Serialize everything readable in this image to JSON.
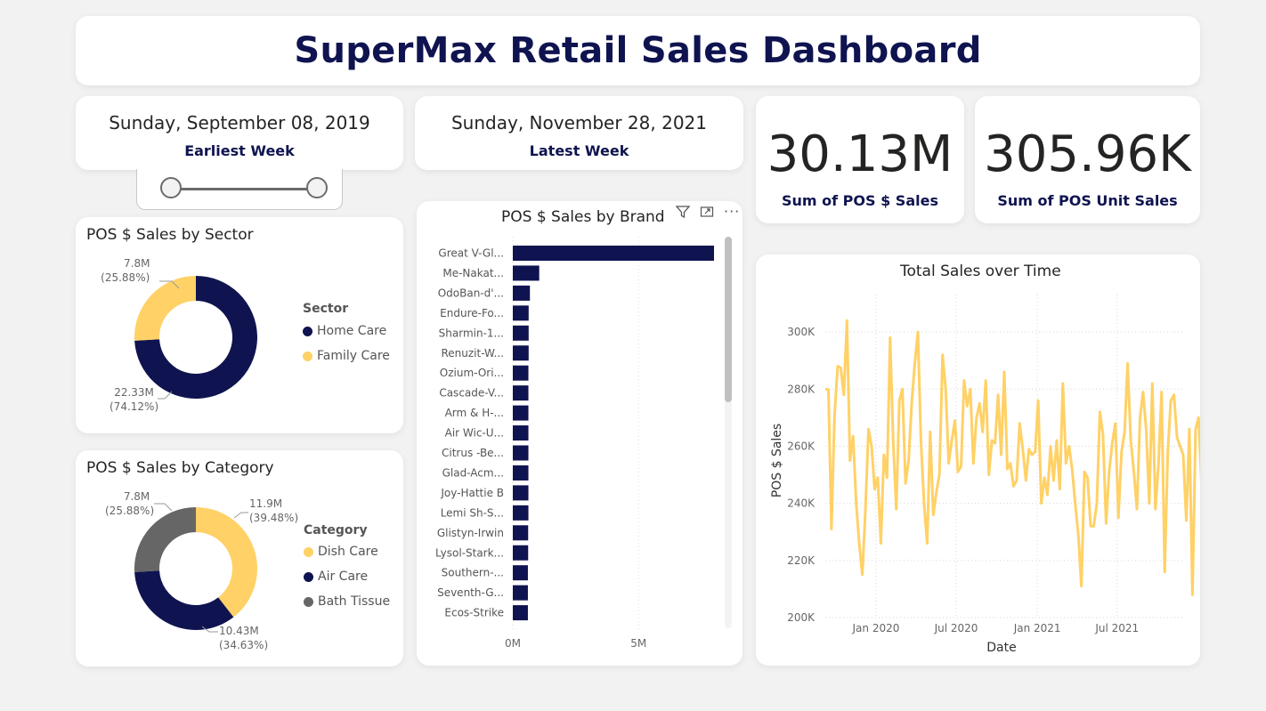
{
  "header": {
    "title": "SuperMax Retail Sales Dashboard"
  },
  "date_range": {
    "earliest": {
      "value": "Sunday, September 08, 2019",
      "label": "Earliest Week"
    },
    "latest": {
      "value": "Sunday, November 28, 2021",
      "label": "Latest Week"
    }
  },
  "kpis": {
    "sales": {
      "value": "30.13M",
      "label": "Sum of POS $ Sales"
    },
    "units": {
      "value": "305.96K",
      "label": "Sum of POS Unit Sales"
    }
  },
  "colors": {
    "navy": "#0f1450",
    "yellow": "#ffd166",
    "gray": "#666666"
  },
  "visual_icons": [
    "filter-icon",
    "focus-mode-icon",
    "more-options-icon"
  ],
  "chart_data": [
    {
      "type": "pie",
      "title": "POS $ Sales by Sector",
      "legend_title": "Sector",
      "slices": [
        {
          "name": "Home Care",
          "value": 22.33,
          "label": "22.33M",
          "pct": "(74.12%)",
          "color": "#0f1450"
        },
        {
          "name": "Family Care",
          "value": 7.8,
          "label": "7.8M",
          "pct": "(25.88%)",
          "color": "#ffd166"
        }
      ]
    },
    {
      "type": "pie",
      "title": "POS $ Sales by Category",
      "legend_title": "Category",
      "slices": [
        {
          "name": "Dish Care",
          "value": 11.9,
          "label": "11.9M",
          "pct": "(39.48%)",
          "color": "#ffd166"
        },
        {
          "name": "Air Care",
          "value": 10.43,
          "label": "10.43M",
          "pct": "(34.63%)",
          "color": "#0f1450"
        },
        {
          "name": "Bath Tissue",
          "value": 7.8,
          "label": "7.8M",
          "pct": "(25.88%)",
          "color": "#666666"
        }
      ]
    },
    {
      "type": "bar",
      "orientation": "horizontal",
      "title": "POS $ Sales by Brand",
      "categories": [
        "Great V-Gl...",
        "Me-Nakat...",
        "OdoBan-d'...",
        "Endure-Fo...",
        "Sharmin-1...",
        "Renuzit-W...",
        "Ozium-Ori...",
        "Cascade-V...",
        "Arm & H-...",
        "Air Wic-U...",
        "Citrus -Be...",
        "Glad-Acm...",
        "Joy-Hattie B",
        "Lemi Sh-S...",
        "Glistyn-Irwin",
        "Lysol-Stark...",
        "Southern-...",
        "Seventh-G...",
        "Ecos-Strike"
      ],
      "values": [
        8.0,
        1.05,
        0.68,
        0.63,
        0.63,
        0.63,
        0.62,
        0.62,
        0.62,
        0.62,
        0.62,
        0.62,
        0.62,
        0.62,
        0.61,
        0.61,
        0.6,
        0.6,
        0.6
      ],
      "xlim": [
        0,
        8.0
      ],
      "xticks": [
        "0M",
        "5M"
      ],
      "xtick_values": [
        0,
        5
      ],
      "color": "#0f1450"
    },
    {
      "type": "line",
      "title": "Total Sales over Time",
      "xlabel": "Date",
      "ylabel": "POS $ Sales",
      "ylim": [
        200,
        310
      ],
      "yticks": [
        "300K",
        "280K",
        "260K",
        "240K",
        "220K",
        "200K"
      ],
      "ytick_values": [
        300,
        280,
        260,
        240,
        220,
        200
      ],
      "xticks": [
        "Jan 2020",
        "Jul 2020",
        "Jan 2021",
        "Jul 2021"
      ],
      "xtick_dates": [
        "2020-01-01",
        "2020-07-01",
        "2021-01-01",
        "2021-07-01"
      ],
      "x_range": [
        "2019-09-08",
        "2021-11-28"
      ],
      "color": "#ffd166",
      "series": [
        {
          "values": [
            280,
            279.8,
            231,
            271,
            288,
            287.5,
            278,
            304,
            255,
            263.5,
            240,
            226,
            215,
            238,
            266,
            260,
            245,
            249,
            226,
            257,
            249,
            298,
            262,
            238,
            276,
            280,
            247,
            255,
            275,
            289,
            300,
            262,
            240,
            226,
            265,
            236,
            244,
            250,
            292,
            280,
            254,
            262,
            269,
            251,
            253,
            283,
            274,
            280,
            254,
            270,
            275,
            265,
            283,
            250,
            262,
            261,
            278,
            257,
            286,
            252,
            254,
            246,
            248,
            268,
            259,
            248,
            259,
            257,
            258,
            276,
            240,
            249,
            243,
            260,
            248,
            262,
            245,
            282,
            254,
            260,
            252,
            240,
            229,
            211,
            251,
            249,
            232,
            232,
            240,
            272,
            264,
            233,
            251,
            261,
            268,
            235,
            258,
            265,
            289,
            262,
            251,
            238,
            270,
            279,
            266,
            240,
            282,
            238,
            254,
            279,
            216,
            258,
            276,
            278,
            263,
            260,
            257,
            234,
            266,
            208,
            266,
            270,
            245,
            263,
            266,
            236,
            260,
            263,
            253,
            252,
            266,
            267,
            264,
            233,
            260,
            249,
            219,
            284,
            260,
            300,
            258,
            251,
            266,
            262,
            262,
            264,
            264,
            269
          ]
        }
      ]
    }
  ]
}
